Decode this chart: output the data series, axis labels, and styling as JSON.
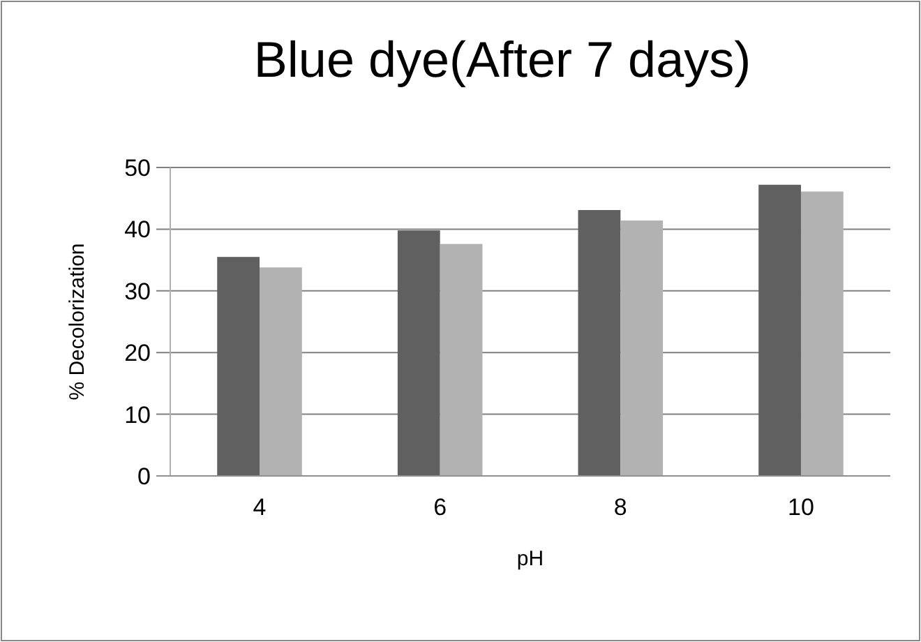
{
  "chart_data": {
    "type": "bar",
    "title": "Blue dye(After 7 days)",
    "xlabel": "pH",
    "ylabel": "% Decolorization",
    "categories": [
      "4",
      "6",
      "8",
      "10"
    ],
    "series": [
      {
        "color": "#606060",
        "values": [
          35.5,
          39.8,
          43.1,
          47.2
        ]
      },
      {
        "color": "#b2b2b2",
        "values": [
          33.8,
          37.6,
          41.4,
          46.1
        ]
      }
    ],
    "ylim": [
      0,
      50
    ],
    "yticks": [
      0,
      10,
      20,
      30,
      40,
      50
    ],
    "grid": "y"
  }
}
